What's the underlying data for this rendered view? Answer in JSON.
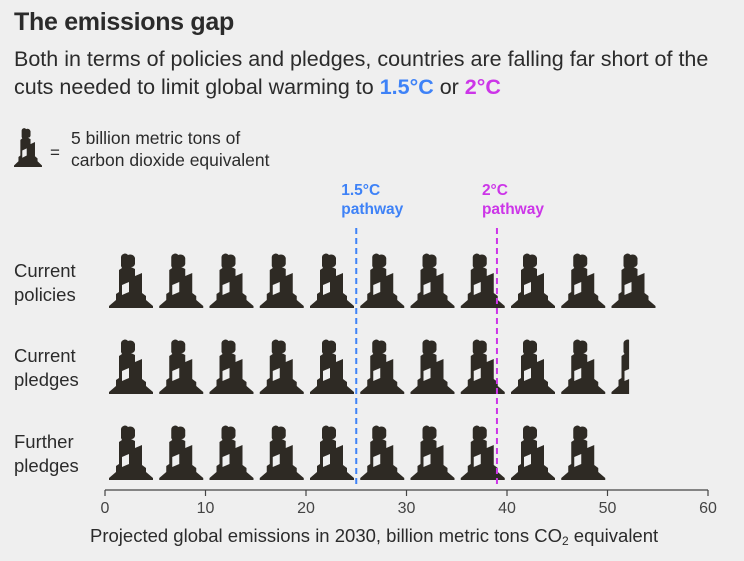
{
  "title": "The emissions gap",
  "subtitle": {
    "text_before": "Both in terms of policies and pledges, countries are falling far short of the cuts needed to limit global warming to ",
    "target_a": "1.5°C",
    "text_mid": " or ",
    "target_b": "2°C"
  },
  "legend": {
    "icon": "smokestack-icon",
    "equals": "=",
    "text_line1": "5 billion metric tons of",
    "text_line2": "carbon dioxide equivalent"
  },
  "colors": {
    "background": "#efefef",
    "icon": "#2e2a24",
    "pathway_1_5": "#3e82f7",
    "pathway_2": "#cc35e8",
    "text": "#2b2b2b"
  },
  "chart_data": {
    "type": "bar",
    "unit_per_icon": 5,
    "categories": [
      {
        "line1": "Current",
        "line2": "policies"
      },
      {
        "line1": "Current",
        "line2": "pledges"
      },
      {
        "line1": "Further",
        "line2": "pledges"
      }
    ],
    "values": [
      55,
      52,
      50
    ],
    "pathways": [
      {
        "line1": "1.5°C",
        "line2": "pathway",
        "value": 25,
        "color": "#3e82f7"
      },
      {
        "line1": "2°C",
        "line2": "pathway",
        "value": 39,
        "color": "#cc35e8"
      }
    ],
    "xlim": [
      0,
      60
    ],
    "xticks": [
      0,
      10,
      20,
      30,
      40,
      50,
      60
    ],
    "xlabel_main": "Projected global emissions in 2030, billion metric tons CO",
    "xlabel_sub": "2",
    "xlabel_end": " equivalent"
  }
}
